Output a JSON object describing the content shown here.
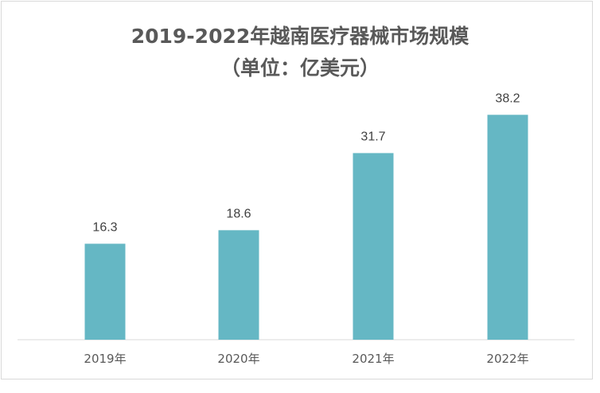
{
  "chart_data": {
    "type": "bar",
    "title_line1": "2019-2022年越南医疗器械市场规模",
    "title_line2": "（单位：亿美元）",
    "categories": [
      "2019年",
      "2020年",
      "2021年",
      "2022年"
    ],
    "values": [
      16.3,
      18.6,
      31.7,
      38.2
    ],
    "value_labels": [
      "16.3",
      "18.6",
      "31.7",
      "38.2"
    ],
    "bar_color": "#65b7c4",
    "ylim": [
      0,
      40
    ],
    "grid": false,
    "legend": "none"
  }
}
